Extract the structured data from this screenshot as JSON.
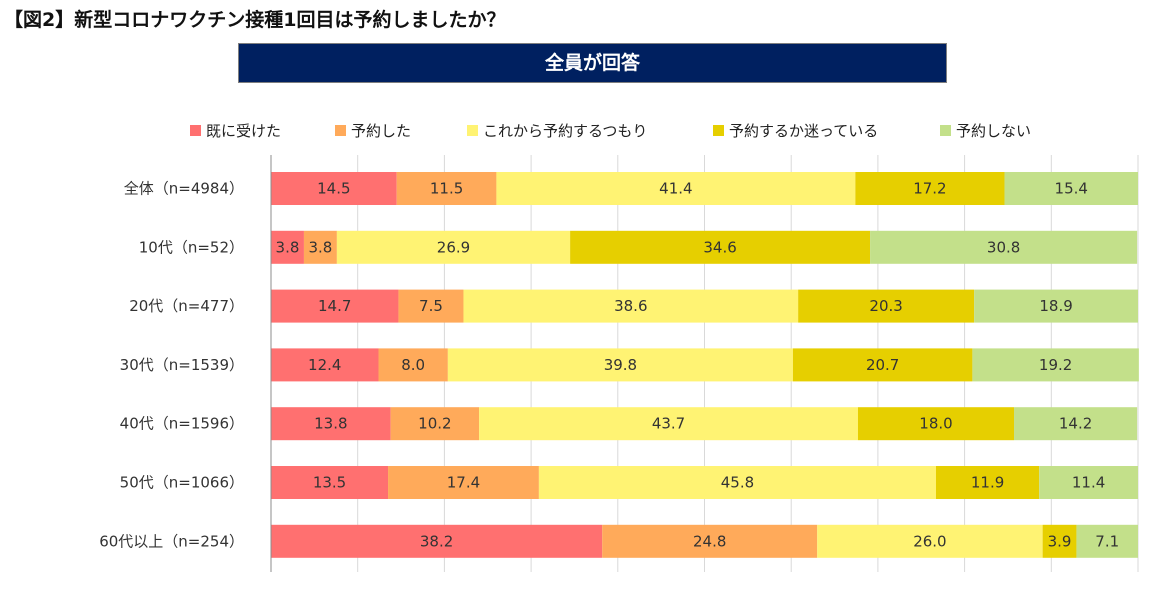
{
  "figure_title": "【図2】新型コロナワクチン接種1回目は予約しましたか？",
  "banner": "全員が回答",
  "chart_data": {
    "type": "bar",
    "orientation": "horizontal",
    "stacked": true,
    "unit": "%",
    "title": "新型コロナワクチン接種1回目は予約しましたか？",
    "xlim": [
      0,
      100
    ],
    "legend_position": "top",
    "categories": [
      "全体（n=4984）",
      "10代（n=52）",
      "20代（n=477）",
      "30代（n=1539）",
      "40代（n=1596）",
      "50代（n=1066）",
      "60代以上（n=254）"
    ],
    "series": [
      {
        "name": "既に受けた",
        "color": "#FF7070",
        "values": [
          14.5,
          3.8,
          14.7,
          12.4,
          13.8,
          13.5,
          38.2
        ],
        "labels": [
          "14.5",
          "3.8",
          "14.7",
          "12.4",
          "13.8",
          "13.5",
          "38.2"
        ]
      },
      {
        "name": "予約した",
        "color": "#FFAA5A",
        "values": [
          11.5,
          3.8,
          7.5,
          8.0,
          10.2,
          17.4,
          24.8
        ],
        "labels": [
          "11.5",
          "3.8",
          "7.5",
          "8.0",
          "10.2",
          "17.4",
          "24.8"
        ]
      },
      {
        "name": "これから予約するつもり",
        "color": "#FFF373",
        "values": [
          41.4,
          26.9,
          38.6,
          39.8,
          43.7,
          45.8,
          26.0
        ],
        "labels": [
          "41.4",
          "26.9",
          "38.6",
          "39.8",
          "43.7",
          "45.8",
          "26.0"
        ]
      },
      {
        "name": "予約するか迷っている",
        "color": "#E6CF00",
        "values": [
          17.2,
          34.6,
          20.3,
          20.7,
          18.0,
          11.9,
          3.9
        ],
        "labels": [
          "17.2",
          "34.6",
          "20.3",
          "20.7",
          "18.0",
          "11.9",
          "3.9"
        ]
      },
      {
        "name": "予約しない",
        "color": "#C3E08A",
        "values": [
          15.4,
          30.8,
          18.9,
          19.2,
          14.2,
          11.4,
          7.1
        ],
        "labels": [
          "15.4",
          "30.8",
          "18.9",
          "19.2",
          "14.2",
          "11.4",
          "7.1"
        ]
      }
    ]
  }
}
